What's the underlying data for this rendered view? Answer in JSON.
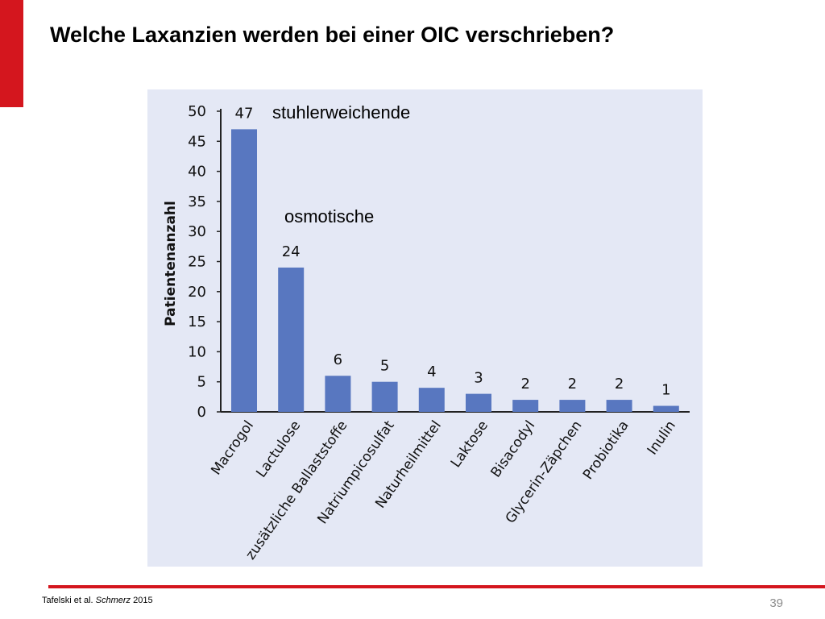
{
  "slide": {
    "title": "Welche Laxanzien werden bei einer OIC verschrieben?",
    "citation_authors": "Tafelski et al.",
    "citation_journal": "Schmerz",
    "citation_year": "2015",
    "page_number": "39",
    "colors": {
      "accent": "#d4161e",
      "bar": "#5877c0",
      "panel": "#e4e8f5"
    }
  },
  "annotations": {
    "stuhlerweichende": "stuhlerweichende",
    "osmotische": "osmotische"
  },
  "chart_data": {
    "type": "bar",
    "categories": [
      "Macrogol",
      "Lactulose",
      "zusätzliche Ballaststoffe",
      "Natriumpicosulfat",
      "Naturheilmittel",
      "Laktose",
      "Bisacodyl",
      "Glycerin-Zäpchen",
      "Probiotika",
      "Inulin"
    ],
    "values": [
      47,
      24,
      6,
      5,
      4,
      3,
      2,
      2,
      2,
      1
    ],
    "data_labels": [
      "47",
      "24",
      "6",
      "5",
      "4",
      "3",
      "2",
      "2",
      "2",
      "1"
    ],
    "ylabel": "Patientenanzahl",
    "xlabel": "",
    "ylim": [
      0,
      50
    ],
    "yticks": [
      0,
      5,
      10,
      15,
      20,
      25,
      30,
      35,
      40,
      45,
      50
    ],
    "grid": false,
    "legend": "none"
  }
}
